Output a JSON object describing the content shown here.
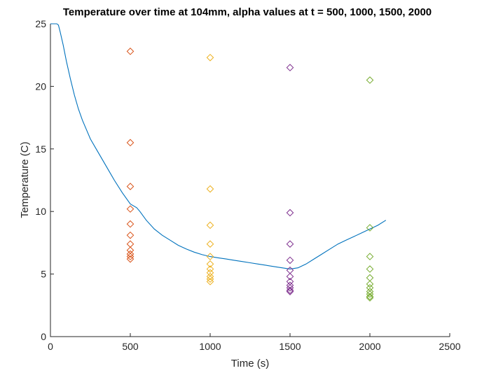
{
  "chart_data": {
    "type": "scatter",
    "title": "Temperature over time at 104mm, alpha values at t = 500, 1000, 1500, 2000",
    "xlabel": "Time (s)",
    "ylabel": "Temperature (C)",
    "xlim": [
      0,
      2500
    ],
    "ylim": [
      0,
      25
    ],
    "xticks": [
      0,
      500,
      1000,
      1500,
      2000,
      2500
    ],
    "yticks": [
      0,
      5,
      10,
      15,
      20,
      25
    ],
    "grid": false,
    "colors": {
      "line": "#0072BD",
      "t500": "#D95319",
      "t1000": "#EDB120",
      "t1500": "#7E2F8E",
      "t2000": "#77AC30"
    },
    "line_series": {
      "x": [
        0,
        20,
        40,
        50,
        60,
        80,
        100,
        125,
        150,
        175,
        200,
        250,
        300,
        350,
        400,
        450,
        500,
        540,
        560,
        600,
        650,
        700,
        750,
        800,
        850,
        900,
        950,
        1000,
        1050,
        1100,
        1150,
        1200,
        1250,
        1300,
        1350,
        1400,
        1450,
        1500,
        1550,
        1600,
        1650,
        1700,
        1750,
        1800,
        1850,
        1900,
        1950,
        2000,
        2050,
        2100
      ],
      "y": [
        25,
        25,
        25,
        24.9,
        24.4,
        23.3,
        22.0,
        20.6,
        19.3,
        18.2,
        17.3,
        15.8,
        14.7,
        13.6,
        12.5,
        11.5,
        10.6,
        10.3,
        10.0,
        9.3,
        8.6,
        8.1,
        7.7,
        7.3,
        7.0,
        6.75,
        6.55,
        6.4,
        6.3,
        6.2,
        6.1,
        6.0,
        5.9,
        5.8,
        5.7,
        5.6,
        5.5,
        5.4,
        5.5,
        5.8,
        6.2,
        6.6,
        7.0,
        7.4,
        7.7,
        8.0,
        8.3,
        8.6,
        8.9,
        9.3
      ]
    },
    "marker_series": [
      {
        "x": 500,
        "values": [
          22.8,
          15.5,
          12.0,
          10.2,
          9.0,
          8.1,
          7.4,
          6.9,
          6.6,
          6.4,
          6.2
        ]
      },
      {
        "x": 1000,
        "values": [
          22.3,
          11.8,
          8.9,
          7.4,
          6.4,
          5.8,
          5.4,
          5.1,
          4.8,
          4.6,
          4.4
        ]
      },
      {
        "x": 1500,
        "values": [
          21.5,
          9.9,
          7.4,
          6.1,
          5.3,
          4.8,
          4.4,
          4.1,
          3.9,
          3.7,
          3.6
        ]
      },
      {
        "x": 2000,
        "values": [
          20.5,
          8.7,
          6.4,
          5.4,
          4.7,
          4.2,
          3.9,
          3.6,
          3.4,
          3.2,
          3.1
        ]
      }
    ]
  }
}
